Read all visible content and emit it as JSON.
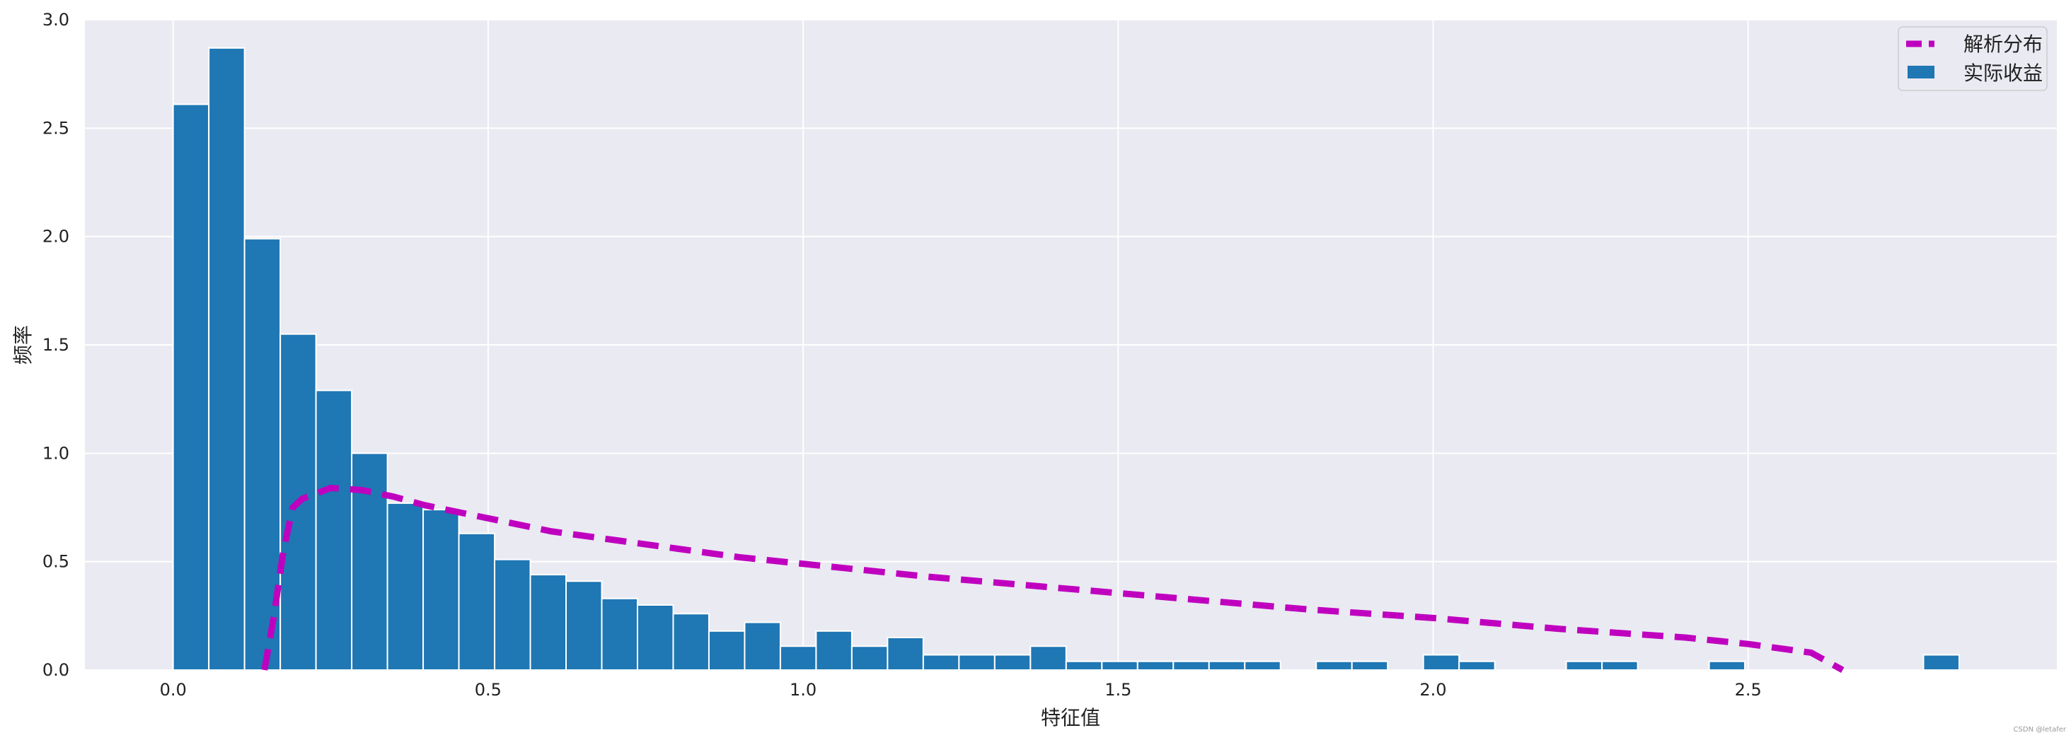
{
  "chart_data": {
    "type": "bar",
    "title": "",
    "xlabel": "特征值",
    "ylabel": "频率",
    "xlim": [
      -0.14,
      2.99
    ],
    "ylim": [
      0,
      3.0
    ],
    "grid": true,
    "legend_position": "top-right",
    "x_ticks": [
      "0.0",
      "0.5",
      "1.0",
      "1.5",
      "2.0",
      "2.5"
    ],
    "x_tick_values": [
      0.0,
      0.5,
      1.0,
      1.5,
      2.0,
      2.5
    ],
    "y_ticks": [
      "0.0",
      "0.5",
      "1.0",
      "1.5",
      "2.0",
      "2.5",
      "3.0"
    ],
    "y_tick_values": [
      0.0,
      0.5,
      1.0,
      1.5,
      2.0,
      2.5,
      3.0
    ],
    "histogram": {
      "name": "实际收益",
      "color": "#1f77b4",
      "bin_width": 0.0567,
      "bin_starts": [
        0.0,
        0.0567,
        0.1134,
        0.1701,
        0.2268,
        0.2835,
        0.3402,
        0.3969,
        0.4536,
        0.5103,
        0.567,
        0.6237,
        0.6804,
        0.7371,
        0.7938,
        0.8505,
        0.9072,
        0.9639,
        1.0206,
        1.0773,
        1.134,
        1.1907,
        1.2474,
        1.3041,
        1.3608,
        1.4175,
        1.4742,
        1.5309,
        1.5876,
        1.6443,
        1.701,
        1.7577,
        1.8144,
        1.8711,
        1.9278,
        1.9845,
        2.0412,
        2.0979,
        2.1546,
        2.2113,
        2.268,
        2.3247,
        2.3814,
        2.4381,
        2.4948,
        2.5515,
        2.6082,
        2.6649,
        2.7216,
        2.7783
      ],
      "values": [
        2.61,
        2.87,
        1.99,
        1.55,
        1.29,
        1.0,
        0.77,
        0.74,
        0.63,
        0.51,
        0.44,
        0.41,
        0.33,
        0.3,
        0.26,
        0.18,
        0.22,
        0.11,
        0.18,
        0.11,
        0.15,
        0.07,
        0.07,
        0.07,
        0.11,
        0.04,
        0.04,
        0.04,
        0.04,
        0.04,
        0.04,
        0.0,
        0.04,
        0.04,
        0.0,
        0.07,
        0.04,
        0.0,
        0.0,
        0.04,
        0.04,
        0.0,
        0.0,
        0.04,
        0.0,
        0.0,
        0.0,
        0.0,
        0.0,
        0.07
      ]
    },
    "line": {
      "name": "解析分布",
      "color": "#bf00bf",
      "style": "dashed",
      "x": [
        0.145,
        0.16,
        0.175,
        0.19,
        0.205,
        0.25,
        0.3,
        0.35,
        0.4,
        0.5,
        0.6,
        0.7,
        0.8,
        0.9,
        1.0,
        1.2,
        1.4,
        1.6,
        1.8,
        2.0,
        2.2,
        2.4,
        2.5,
        2.6,
        2.65
      ],
      "y": [
        0.0,
        0.25,
        0.55,
        0.75,
        0.79,
        0.84,
        0.83,
        0.8,
        0.76,
        0.7,
        0.64,
        0.6,
        0.56,
        0.52,
        0.49,
        0.43,
        0.38,
        0.33,
        0.28,
        0.24,
        0.19,
        0.15,
        0.12,
        0.08,
        0.0
      ]
    }
  },
  "watermark": "CSDN @letafer"
}
